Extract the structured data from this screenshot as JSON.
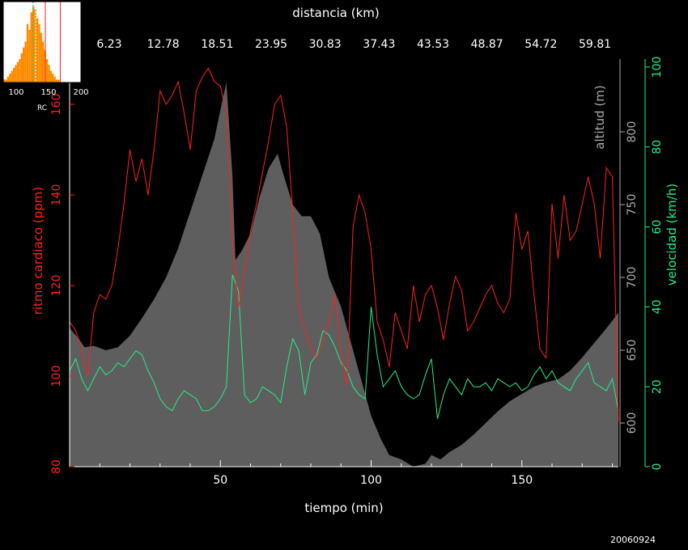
{
  "chart_data": [
    {
      "type": "line",
      "title": "",
      "top_axis_label": "distancia (km)",
      "top_tick_labels": [
        "6.23",
        "12.78",
        "18.51",
        "23.95",
        "30.83",
        "37.43",
        "43.53",
        "48.87",
        "54.72",
        "59.81"
      ],
      "xlabel": "tiempo (min)",
      "xlim": [
        0,
        182
      ],
      "x_tick_labels": [
        "50",
        "100",
        "150"
      ],
      "x_ticks": [
        50,
        100,
        150
      ],
      "left_axis": {
        "label": "ritmo cardiaco (ppm)",
        "range": [
          80,
          170
        ],
        "ticks": [
          80,
          100,
          120,
          140,
          160
        ],
        "color": "#ff2020"
      },
      "alt_axis": {
        "label": "altitud (m)",
        "range": [
          570,
          850
        ],
        "ticks": [
          600,
          650,
          700,
          750,
          800
        ],
        "color": "#aaaaaa"
      },
      "speed_axis": {
        "label": "velocidad (km/h)",
        "range": [
          0,
          102
        ],
        "ticks": [
          0,
          20,
          40,
          60,
          80,
          100
        ],
        "color": "#22ee88"
      },
      "series": [
        {
          "name": "altitud",
          "type": "area",
          "color": "#5e5e5e",
          "x": [
            0,
            3,
            5,
            8,
            12,
            16,
            20,
            24,
            28,
            32,
            36,
            40,
            44,
            48,
            50,
            52,
            54,
            55,
            57,
            60,
            63,
            66,
            69,
            71,
            74,
            77,
            80,
            83,
            86,
            88,
            90,
            92,
            94,
            96,
            98,
            100,
            103,
            106,
            110,
            114,
            118,
            120,
            123,
            126,
            130,
            134,
            138,
            142,
            146,
            150,
            154,
            158,
            162,
            166,
            170,
            174,
            178,
            181,
            182
          ],
          "y": [
            665,
            658,
            652,
            653,
            650,
            652,
            660,
            672,
            685,
            700,
            720,
            745,
            770,
            795,
            815,
            834,
            770,
            712,
            718,
            730,
            755,
            775,
            785,
            770,
            750,
            742,
            742,
            730,
            700,
            690,
            680,
            665,
            650,
            635,
            620,
            605,
            590,
            578,
            575,
            570,
            572,
            578,
            575,
            580,
            585,
            592,
            600,
            608,
            615,
            620,
            625,
            628,
            630,
            636,
            645,
            655,
            665,
            673,
            676
          ]
        },
        {
          "name": "ritmo cardiaco",
          "type": "line",
          "color": "#ff2020",
          "x": [
            0,
            2,
            4,
            6,
            8,
            10,
            12,
            14,
            16,
            18,
            20,
            22,
            24,
            26,
            28,
            30,
            32,
            34,
            36,
            38,
            40,
            42,
            44,
            46,
            48,
            50,
            52,
            54,
            56,
            58,
            60,
            62,
            64,
            66,
            68,
            70,
            72,
            74,
            76,
            78,
            80,
            82,
            84,
            86,
            88,
            90,
            92,
            94,
            96,
            98,
            100,
            102,
            104,
            106,
            108,
            110,
            112,
            114,
            116,
            118,
            120,
            122,
            124,
            126,
            128,
            130,
            132,
            134,
            136,
            138,
            140,
            142,
            144,
            146,
            148,
            150,
            152,
            154,
            156,
            158,
            160,
            162,
            164,
            166,
            168,
            170,
            172,
            174,
            176,
            178,
            180,
            182
          ],
          "y": [
            112,
            110,
            106,
            100,
            114,
            118,
            117,
            120,
            128,
            138,
            150,
            143,
            148,
            140,
            150,
            163,
            160,
            162,
            165,
            158,
            150,
            163,
            166,
            168,
            165,
            164,
            158,
            130,
            115,
            123,
            132,
            138,
            145,
            152,
            160,
            162,
            155,
            136,
            115,
            110,
            106,
            104,
            108,
            112,
            118,
            105,
            98,
            133,
            140,
            136,
            128,
            112,
            108,
            102,
            114,
            110,
            106,
            120,
            112,
            118,
            120,
            115,
            108,
            116,
            122,
            119,
            110,
            112,
            115,
            118,
            120,
            116,
            114,
            117,
            136,
            128,
            132,
            118,
            106,
            104,
            138,
            126,
            140,
            130,
            132,
            138,
            144,
            138,
            126,
            146,
            144,
            90
          ]
        },
        {
          "name": "velocidad",
          "type": "line",
          "color": "#22ee88",
          "x": [
            0,
            2,
            4,
            6,
            8,
            10,
            12,
            14,
            16,
            18,
            20,
            22,
            24,
            26,
            28,
            30,
            32,
            34,
            36,
            38,
            40,
            42,
            44,
            46,
            48,
            50,
            52,
            54,
            56,
            58,
            60,
            62,
            64,
            66,
            68,
            70,
            72,
            74,
            76,
            78,
            80,
            82,
            84,
            86,
            88,
            90,
            92,
            94,
            96,
            98,
            100,
            102,
            104,
            106,
            108,
            110,
            112,
            114,
            116,
            118,
            120,
            122,
            124,
            126,
            128,
            130,
            132,
            134,
            136,
            138,
            140,
            142,
            144,
            146,
            148,
            150,
            152,
            154,
            156,
            158,
            160,
            162,
            164,
            166,
            168,
            170,
            172,
            174,
            176,
            178,
            180,
            182
          ],
          "y": [
            24,
            27,
            22,
            19,
            22,
            25,
            23,
            24,
            26,
            25,
            27,
            29,
            28,
            24,
            21,
            17,
            15,
            14,
            17,
            19,
            18,
            17,
            14,
            14,
            15,
            17,
            20,
            48,
            44,
            18,
            16,
            17,
            20,
            19,
            18,
            16,
            25,
            32,
            29,
            18,
            26,
            28,
            34,
            33,
            30,
            26,
            24,
            20,
            18,
            17,
            40,
            28,
            20,
            22,
            24,
            20,
            18,
            17,
            18,
            23,
            27,
            12,
            18,
            22,
            20,
            18,
            22,
            20,
            20,
            21,
            19,
            22,
            21,
            20,
            21,
            19,
            20,
            23,
            25,
            22,
            24,
            21,
            20,
            19,
            22,
            24,
            26,
            21,
            20,
            19,
            22,
            14
          ]
        }
      ]
    },
    {
      "type": "bar",
      "title": "",
      "xlabel": "RC",
      "x_tick_labels": [
        "100",
        "150",
        "200"
      ],
      "xlim": [
        80,
        200
      ],
      "bin_start": 80,
      "bin_width": 3,
      "values": [
        1,
        1,
        2,
        3,
        4,
        5,
        6,
        7,
        8,
        10,
        12,
        14,
        20,
        18,
        24,
        26,
        25,
        22,
        20,
        17,
        14,
        11,
        8,
        6,
        4,
        3,
        2,
        1,
        1,
        0,
        0,
        0,
        0,
        0,
        0,
        0,
        0,
        0,
        0,
        0
      ],
      "bar_color": "#ff8c00",
      "markers": [
        {
          "x": 126,
          "color": "#00cc66",
          "style": "dashed"
        },
        {
          "x": 130,
          "color": "#ffffff",
          "style": "dashed"
        },
        {
          "x": 145,
          "color": "#ff2020",
          "style": "solid"
        },
        {
          "x": 168,
          "color": "#ff2020",
          "style": "solid"
        }
      ]
    }
  ],
  "footer": {
    "date": "20060924"
  }
}
